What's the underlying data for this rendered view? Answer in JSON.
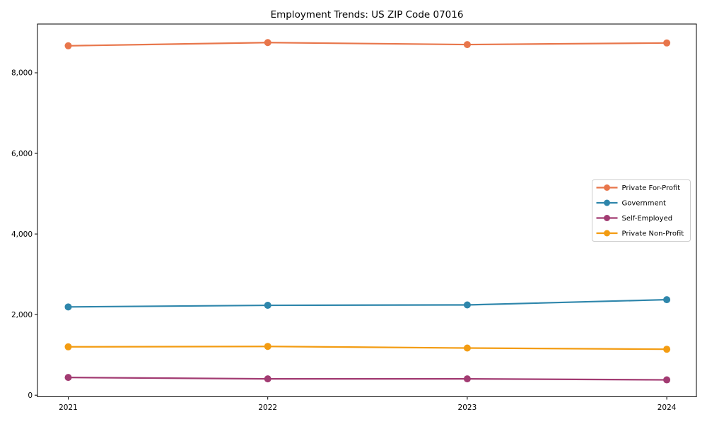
{
  "figure": {
    "title": "Employment Trends: US ZIP Code 07016"
  },
  "chart_data": {
    "type": "line",
    "title": "Employment Trends: US ZIP Code 07016",
    "x": [
      "2021",
      "2022",
      "2023",
      "2024"
    ],
    "series": [
      {
        "name": "Private For-Profit",
        "color": "#E8764B",
        "values": [
          8670,
          8750,
          8700,
          8740
        ]
      },
      {
        "name": "Government",
        "color": "#2E86AB",
        "values": [
          2190,
          2230,
          2240,
          2370
        ]
      },
      {
        "name": "Self-Employed",
        "color": "#A23B72",
        "values": [
          440,
          405,
          405,
          380
        ]
      },
      {
        "name": "Private Non-Profit",
        "color": "#F39C12",
        "values": [
          1200,
          1210,
          1170,
          1140
        ]
      }
    ],
    "xlabel": "",
    "ylabel": "",
    "ylim": [
      -40,
      9210
    ],
    "yticks": {
      "values": [
        0,
        2000,
        4000,
        6000,
        8000
      ],
      "labels": [
        "0",
        "2,000",
        "4,000",
        "6,000",
        "8,000"
      ]
    },
    "grid": false,
    "legend_position": "center-right",
    "marker": "circle",
    "axis_color": "#000000",
    "legend_border_color": "#cccccc",
    "background": "#ffffff"
  }
}
